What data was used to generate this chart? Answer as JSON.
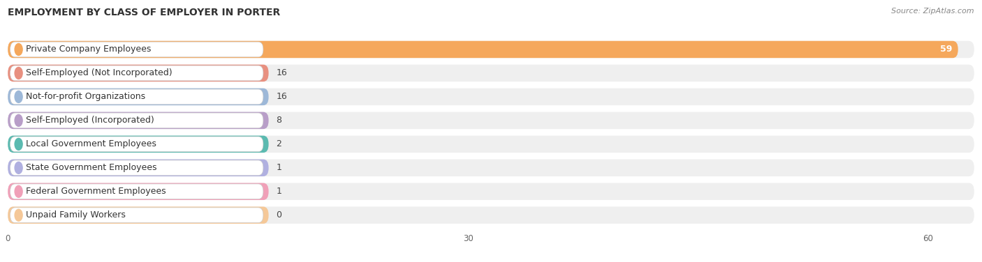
{
  "title": "EMPLOYMENT BY CLASS OF EMPLOYER IN PORTER",
  "source": "Source: ZipAtlas.com",
  "categories": [
    "Private Company Employees",
    "Self-Employed (Not Incorporated)",
    "Not-for-profit Organizations",
    "Self-Employed (Incorporated)",
    "Local Government Employees",
    "State Government Employees",
    "Federal Government Employees",
    "Unpaid Family Workers"
  ],
  "values": [
    59,
    16,
    16,
    8,
    2,
    1,
    1,
    0
  ],
  "bar_colors": [
    "#F5A85C",
    "#E89080",
    "#9DB8D8",
    "#B89EC8",
    "#5BBAB0",
    "#B0B0E0",
    "#F0A0B8",
    "#F5C898"
  ],
  "xlim_max": 63,
  "xticks": [
    0,
    30,
    60
  ],
  "bg_color": "#ffffff",
  "row_bg": "#efefef",
  "title_fontsize": 10,
  "label_fontsize": 9,
  "value_fontsize": 9,
  "source_fontsize": 8
}
